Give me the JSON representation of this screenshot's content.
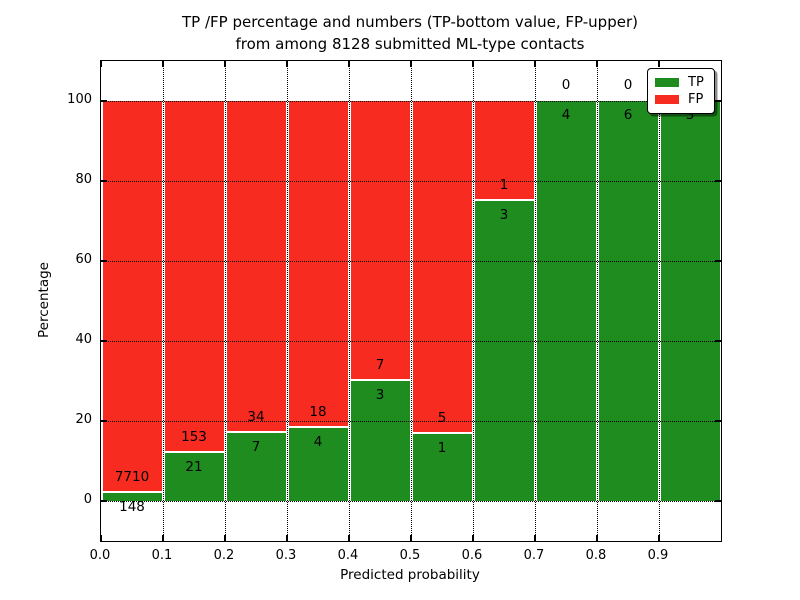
{
  "figure": {
    "title_line1": "TP /FP percentage and numbers (TP-bottom value, FP-upper)",
    "title_line2": "from among 8128 submitted ML-type contacts",
    "xlabel": "Predicted probability",
    "ylabel": "Percentage",
    "background_color": "#ffffff"
  },
  "legend": {
    "position": "upper right",
    "entries": [
      {
        "label": "TP",
        "color": "#1e8c1e"
      },
      {
        "label": "FP",
        "color": "#f82b20"
      }
    ]
  },
  "chart_data": {
    "type": "bar",
    "stacked": true,
    "normalized_to_percent": true,
    "title": "TP /FP percentage and numbers (TP-bottom value, FP-upper) from among 8128 submitted ML-type contacts",
    "xlabel": "Predicted probability",
    "ylabel": "Percentage",
    "submitted_total": 8128,
    "bin_edges": [
      0.0,
      0.1,
      0.2,
      0.3,
      0.4,
      0.5,
      0.6,
      0.7,
      0.8,
      0.9,
      1.0
    ],
    "x_tick_labels": [
      "0.0",
      "0.1",
      "0.2",
      "0.3",
      "0.4",
      "0.5",
      "0.6",
      "0.7",
      "0.8",
      "0.9"
    ],
    "y_ticks": [
      0,
      20,
      40,
      60,
      80,
      100
    ],
    "xlim": [
      0.0,
      1.0
    ],
    "ylim": [
      -10,
      110
    ],
    "grid": {
      "style": "dotted",
      "color": "#000000",
      "drawn_over_bars": true
    },
    "bar_edge_color": "#ffffff",
    "series": [
      {
        "name": "TP",
        "color": "#1e8c1e",
        "counts": [
          148,
          21,
          7,
          4,
          3,
          1,
          3,
          4,
          6,
          3
        ],
        "percent": [
          1.88,
          12.07,
          17.07,
          18.18,
          30.0,
          16.67,
          75.0,
          100.0,
          100.0,
          100.0
        ]
      },
      {
        "name": "FP",
        "color": "#f82b20",
        "counts": [
          7710,
          153,
          34,
          18,
          7,
          5,
          1,
          0,
          0,
          0
        ],
        "percent": [
          98.12,
          87.93,
          82.93,
          81.82,
          70.0,
          83.33,
          25.0,
          0.0,
          0.0,
          0.0
        ]
      }
    ]
  }
}
